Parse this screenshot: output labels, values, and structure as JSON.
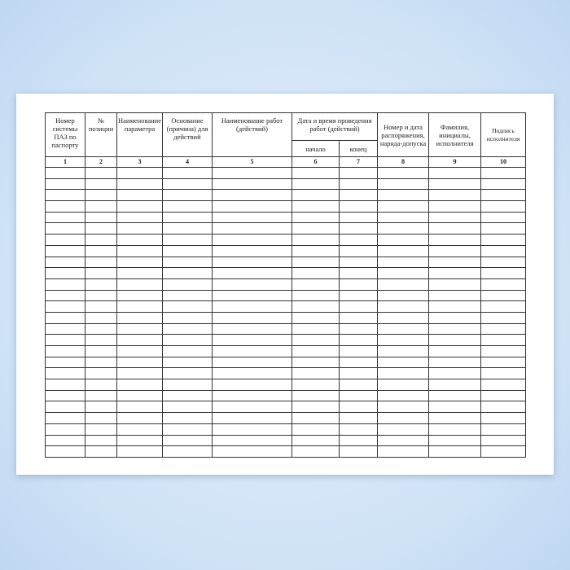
{
  "headers": [
    "Номер системы ПАЗ по паспорту",
    "№ позиции",
    "Наименование параметра",
    "Основание (причина) для действий",
    "Наименование работ (действий)",
    "Дата и время проведения работ (действий)",
    "Номер и дата распоряжения, наряда-допуска",
    "Фамилия, инициалы, исполнителя",
    "Подпись исполнителя"
  ],
  "subheaders": [
    "начало",
    "конец"
  ],
  "column_numbers": [
    "1",
    "2",
    "3",
    "4",
    "5",
    "6",
    "7",
    "8",
    "9",
    "10"
  ],
  "empty_rows": 26
}
